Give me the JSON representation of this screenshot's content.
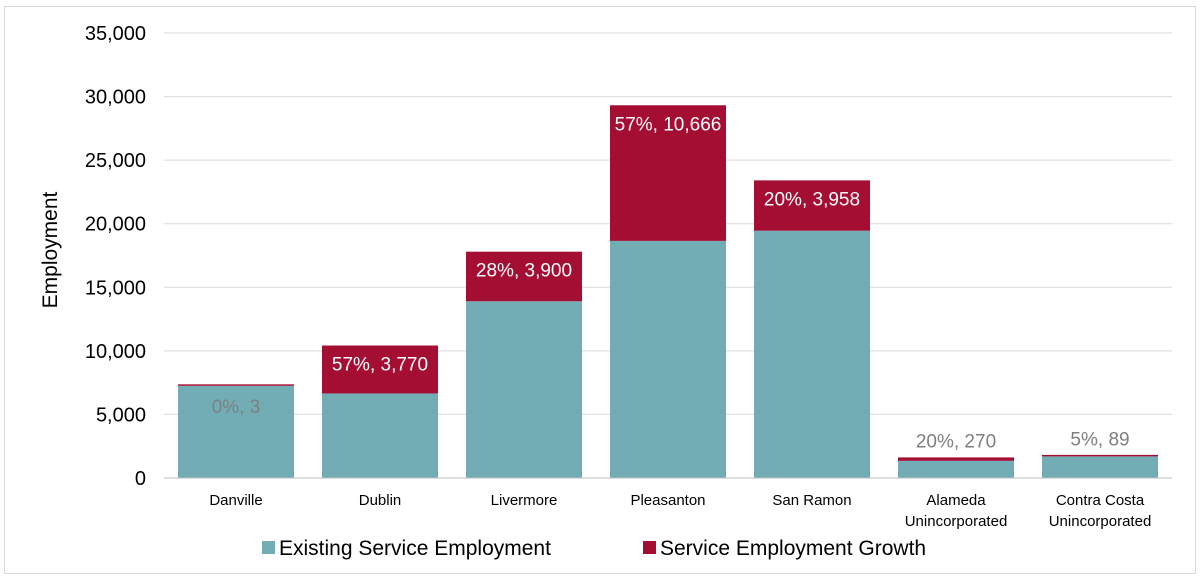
{
  "chart_data": {
    "type": "bar",
    "stacked": true,
    "title": "",
    "xlabel": "",
    "ylabel": "Employment",
    "ylim": [
      0,
      35000
    ],
    "y_ticks": [
      "0",
      "5,000",
      "10,000",
      "15,000",
      "20,000",
      "25,000",
      "30,000",
      "35,000"
    ],
    "grid": true,
    "legend_position": "bottom",
    "categories": [
      [
        "Danville"
      ],
      [
        "Dublin"
      ],
      [
        "Livermore"
      ],
      [
        "Pleasanton"
      ],
      [
        "San Ramon"
      ],
      [
        "Alameda",
        "Unincorporated"
      ],
      [
        "Contra Costa",
        "Unincorporated"
      ]
    ],
    "series": [
      {
        "name": "Existing Service Employment",
        "color": "#72adb6",
        "values": [
          7250,
          6650,
          13900,
          18650,
          19450,
          1350,
          1700
        ]
      },
      {
        "name": "Service Employment Growth",
        "color": "#a50e33",
        "values": [
          3,
          3770,
          3900,
          10666,
          3958,
          270,
          89
        ],
        "data_labels": [
          "0%, 3",
          "57%, 3,770",
          "28%, 3,900",
          "57%, 10,666",
          "20%, 3,958",
          "20%, 270",
          "5%, 89"
        ],
        "label_placement": [
          "inside-below",
          "inside",
          "inside",
          "inside",
          "inside",
          "above",
          "above"
        ]
      }
    ]
  }
}
